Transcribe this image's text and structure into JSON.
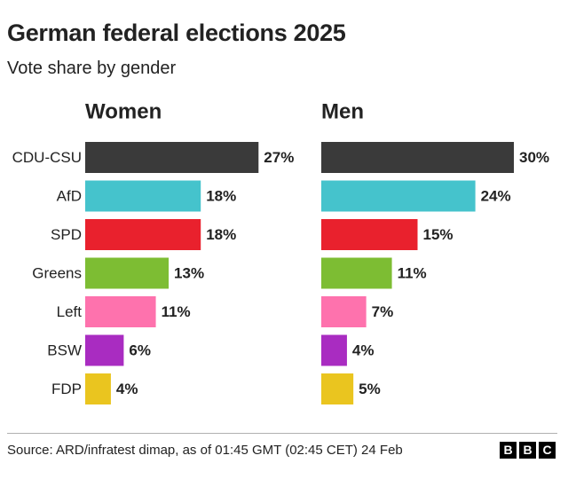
{
  "chart_data": {
    "type": "bar",
    "orientation": "horizontal",
    "title": "German federal elections 2025",
    "subtitle": "Vote share by gender",
    "categories": [
      "CDU-CSU",
      "AfD",
      "SPD",
      "Greens",
      "Left",
      "BSW",
      "FDP"
    ],
    "colors": [
      "#3a3a3a",
      "#45c3cc",
      "#e9212d",
      "#7dbd33",
      "#fe72ad",
      "#a92cc1",
      "#eac51f"
    ],
    "value_suffix": "%",
    "xlim": [
      0,
      30
    ],
    "series": [
      {
        "name": "Women",
        "values": [
          27,
          18,
          18,
          13,
          11,
          6,
          4
        ]
      },
      {
        "name": "Men",
        "values": [
          30,
          24,
          15,
          11,
          7,
          4,
          5
        ]
      }
    ],
    "source": "Source: ARD/infratest dimap, as of 01:45 GMT (02:45 CET) 24 Feb",
    "logo": [
      "B",
      "B",
      "C"
    ]
  }
}
